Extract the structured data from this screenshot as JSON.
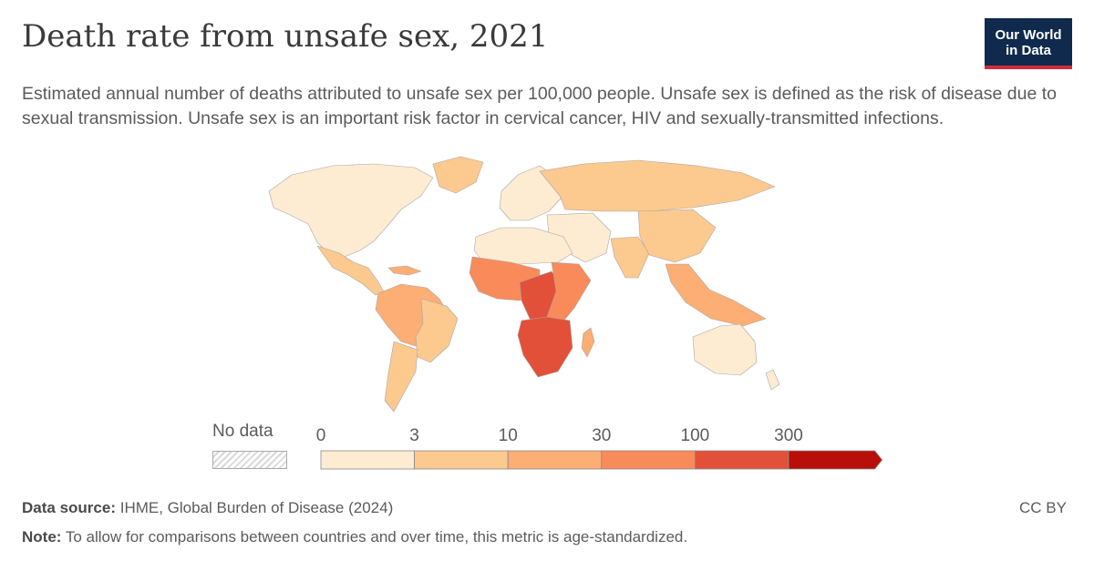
{
  "header": {
    "title": "Death rate from unsafe sex, 2021",
    "subtitle": "Estimated annual number of deaths attributed to unsafe sex per 100,000 people. Unsafe sex is defined as the risk of disease due to sexual transmission. Unsafe sex is an important risk factor in cervical cancer, HIV and sexually-transmitted infections."
  },
  "logo": {
    "line1": "Our World",
    "line2": "in Data"
  },
  "legend": {
    "no_data_label": "No data",
    "ticks": [
      "0",
      "3",
      "10",
      "30",
      "100",
      "300"
    ],
    "colors": [
      "#fdebd2",
      "#fcc98f",
      "#fcae74",
      "#f98a5a",
      "#e2503a",
      "#b80f0a"
    ]
  },
  "map_colors": {
    "ocean": "#ffffff",
    "border": "#a8a8a8",
    "very_low": "#fdebd2",
    "low": "#fcc98f",
    "medium": "#fcae74",
    "high": "#f98a5a",
    "very_high": "#e2503a",
    "extreme": "#b80f0a"
  },
  "footer": {
    "source_label": "Data source:",
    "source_text": "IHME, Global Burden of Disease (2024)",
    "note_label": "Note:",
    "note_text": "To allow for comparisons between countries and over time, this metric is age-standardized.",
    "license": "CC BY"
  }
}
